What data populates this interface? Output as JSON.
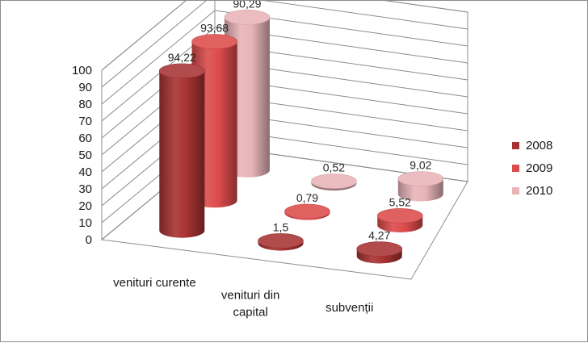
{
  "chart_data": {
    "type": "bar",
    "style": "3d-cylinder",
    "categories": [
      "venituri curente",
      "venituri din capital",
      "subvenții"
    ],
    "series": [
      {
        "name": "2008",
        "values": [
          94.22,
          1.5,
          4.27
        ],
        "labels": [
          "94,22",
          "1,5",
          "4,27"
        ]
      },
      {
        "name": "2009",
        "values": [
          93.68,
          0.79,
          5.52
        ],
        "labels": [
          "93,68",
          "0,79",
          "5,52"
        ]
      },
      {
        "name": "2010",
        "values": [
          90.29,
          0.52,
          9.02
        ],
        "labels": [
          "90,29",
          "0,52",
          "9,02"
        ]
      }
    ],
    "yticks": [
      "0",
      "10",
      "20",
      "30",
      "40",
      "50",
      "60",
      "70",
      "80",
      "90",
      "100"
    ],
    "ylim": [
      0,
      100
    ],
    "grid": true,
    "legend": "right",
    "colors": {
      "2008": "#a83232",
      "2009": "#dd4b4b",
      "2010": "#e8b4b8"
    }
  }
}
